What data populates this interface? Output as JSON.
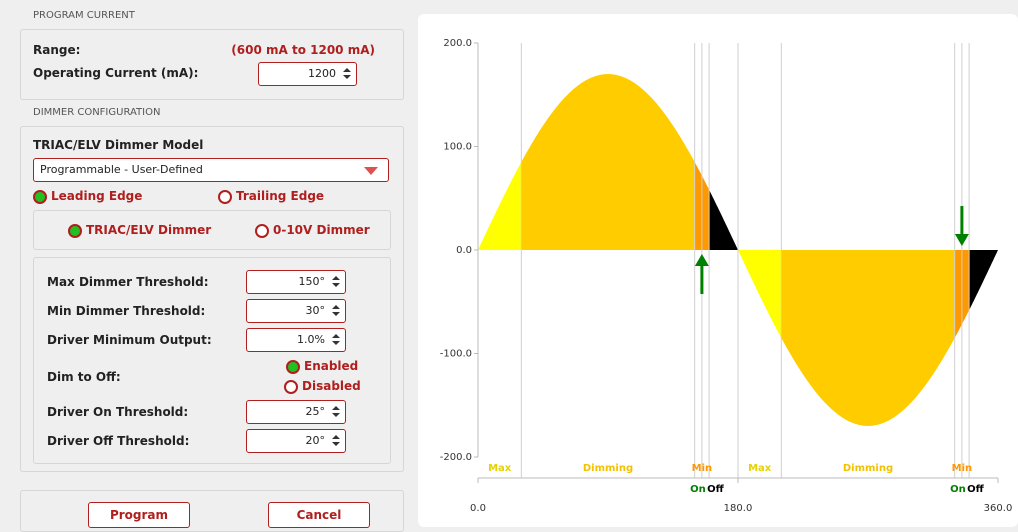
{
  "program_current": {
    "heading": "PROGRAM CURRENT",
    "range_label": "Range:",
    "range_value": "(600 mA to 1200 mA)",
    "operating_label": "Operating Current (mA):",
    "operating_value": "1200"
  },
  "dimmer_configuration": {
    "heading": "DIMMER CONFIGURATION",
    "model_label": "TRIAC/ELV Dimmer Model",
    "model_value": "Programmable - User-Defined",
    "edge_options": [
      {
        "label": "Leading Edge",
        "selected": true
      },
      {
        "label": "Trailing Edge",
        "selected": false
      }
    ],
    "dimmer_type_options": [
      {
        "label": "TRIAC/ELV Dimmer",
        "selected": true
      },
      {
        "label": "0-10V Dimmer",
        "selected": false
      }
    ],
    "fields": [
      {
        "label": "Max Dimmer Threshold:",
        "value": "150°"
      },
      {
        "label": "Min Dimmer Threshold:",
        "value": "30°"
      },
      {
        "label": "Driver Minimum Output:",
        "value": "1.0%"
      },
      {
        "label": "Driver On Threshold:",
        "value": "25°"
      },
      {
        "label": "Driver Off Threshold:",
        "value": "20°"
      }
    ],
    "dim_to_off": {
      "label": "Dim to Off:",
      "options": [
        {
          "label": "Enabled",
          "selected": true
        },
        {
          "label": "Disabled",
          "selected": false
        }
      ]
    }
  },
  "buttons": [
    "Program",
    "Cancel"
  ],
  "chart_data": {
    "type": "area",
    "amplitude": 170,
    "xlim": [
      0,
      360
    ],
    "ylim": [
      -200,
      200
    ],
    "yticks": [
      {
        "value": 200,
        "label": "200.0"
      },
      {
        "value": 100,
        "label": "100.0"
      },
      {
        "value": 0,
        "label": "0.0"
      },
      {
        "value": -100,
        "label": "-100.0"
      },
      {
        "value": -200,
        "label": "-200.0"
      }
    ],
    "xticks": [
      {
        "value": 0,
        "label": "0.0"
      },
      {
        "value": 180,
        "label": "180.0"
      },
      {
        "value": 360,
        "label": "360.0"
      }
    ],
    "regions": [
      {
        "start": 0,
        "end": 30,
        "color": "#ffff00",
        "label": "Max",
        "label_color": "#e6d200"
      },
      {
        "start": 30,
        "end": 150,
        "color": "#ffcc00",
        "label": "Dimming",
        "label_color": "#f2c200"
      },
      {
        "start": 150,
        "end": 160,
        "color": "#ff9900",
        "label": "Min",
        "label_color": "#ff9900"
      },
      {
        "start": 160,
        "end": 180,
        "color": "#000000"
      },
      {
        "start": 180,
        "end": 210,
        "color": "#ffff00",
        "label": "Max",
        "label_color": "#e6d200"
      },
      {
        "start": 210,
        "end": 330,
        "color": "#ffcc00",
        "label": "Dimming",
        "label_color": "#f2c200"
      },
      {
        "start": 330,
        "end": 340,
        "color": "#ff9900",
        "label": "Min",
        "label_color": "#ff9900"
      },
      {
        "start": 340,
        "end": 360,
        "color": "#000000"
      }
    ],
    "events": [
      {
        "x": 155,
        "label": "On",
        "color": "#008000",
        "arrow": true
      },
      {
        "x": 160,
        "label": "Off",
        "color": "#000000",
        "arrow": false
      },
      {
        "x": 335,
        "label": "On",
        "color": "#008000",
        "arrow": true
      },
      {
        "x": 340,
        "label": "Off",
        "color": "#000000",
        "arrow": false
      }
    ]
  }
}
